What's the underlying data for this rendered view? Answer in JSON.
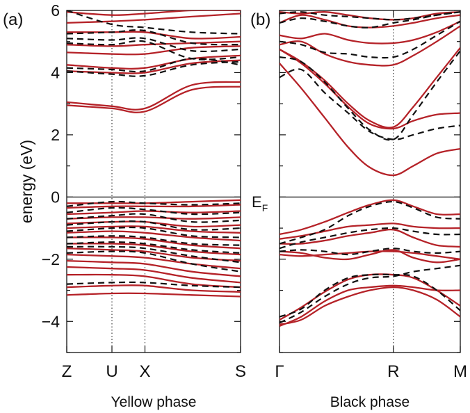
{
  "colors": {
    "solid": "#b52228",
    "dashed": "#111111",
    "axis": "#111111"
  },
  "ylabel": "energy (eV)",
  "ef_label": "E",
  "ef_sub": "F",
  "chart_data": [
    {
      "type": "line",
      "panel_label": "(a)",
      "caption": "Yellow phase",
      "ylim": [
        -5,
        6
      ],
      "y_ticks": [
        -4,
        -2,
        0,
        2,
        4,
        6
      ],
      "kpoints": [
        {
          "label": "Z",
          "x": 0
        },
        {
          "label": "U",
          "x": 0.26
        },
        {
          "label": "X",
          "x": 0.45
        },
        {
          "label": "S",
          "x": 1
        }
      ],
      "x": [
        0,
        0.26,
        0.45,
        0.72,
        1
      ],
      "series": [
        {
          "style": "solid",
          "values": [
            2.95,
            2.85,
            2.75,
            3.45,
            3.55
          ]
        },
        {
          "style": "solid",
          "values": [
            3.05,
            2.92,
            2.85,
            3.6,
            3.7
          ]
        },
        {
          "style": "solid",
          "values": [
            4.05,
            4.0,
            4.0,
            4.3,
            4.4
          ]
        },
        {
          "style": "solid",
          "values": [
            4.25,
            4.15,
            4.15,
            4.45,
            4.55
          ]
        },
        {
          "style": "solid",
          "values": [
            4.65,
            4.6,
            4.6,
            4.8,
            4.85
          ]
        },
        {
          "style": "solid",
          "values": [
            4.9,
            4.85,
            4.9,
            4.95,
            5.0
          ]
        },
        {
          "style": "solid",
          "values": [
            5.3,
            5.3,
            5.3,
            5.1,
            5.15
          ]
        },
        {
          "style": "solid",
          "values": [
            5.6,
            5.65,
            5.7,
            5.8,
            5.9
          ]
        },
        {
          "style": "solid",
          "values": [
            5.95,
            5.85,
            5.9,
            6.0,
            6.0
          ]
        },
        {
          "style": "dashed",
          "values": [
            4.05,
            3.95,
            3.9,
            4.25,
            4.35
          ]
        },
        {
          "style": "dashed",
          "values": [
            4.15,
            4.1,
            4.05,
            4.45,
            4.25
          ]
        },
        {
          "style": "dashed",
          "values": [
            4.95,
            4.9,
            5.0,
            4.45,
            4.5
          ]
        },
        {
          "style": "dashed",
          "values": [
            5.1,
            5.05,
            5.1,
            4.7,
            4.75
          ]
        },
        {
          "style": "dashed",
          "values": [
            5.25,
            5.3,
            5.35,
            4.95,
            4.9
          ]
        },
        {
          "style": "dashed",
          "values": [
            6.0,
            5.55,
            5.45,
            5.3,
            5.25
          ]
        },
        {
          "style": "solid",
          "values": [
            -0.2,
            -0.2,
            -0.2,
            -0.15,
            -0.1
          ]
        },
        {
          "style": "solid",
          "values": [
            -0.35,
            -0.3,
            -0.3,
            -0.3,
            -0.25
          ]
        },
        {
          "style": "solid",
          "values": [
            -0.55,
            -0.5,
            -0.45,
            -0.5,
            -0.45
          ]
        },
        {
          "style": "solid",
          "values": [
            -0.7,
            -0.65,
            -0.65,
            -0.7,
            -0.65
          ]
        },
        {
          "style": "solid",
          "values": [
            -0.85,
            -0.8,
            -0.8,
            -0.95,
            -0.9
          ]
        },
        {
          "style": "solid",
          "values": [
            -1.0,
            -0.95,
            -0.95,
            -1.1,
            -1.15
          ]
        },
        {
          "style": "solid",
          "values": [
            -1.15,
            -1.1,
            -1.15,
            -1.3,
            -1.4
          ]
        },
        {
          "style": "solid",
          "values": [
            -1.3,
            -1.3,
            -1.35,
            -1.55,
            -1.65
          ]
        },
        {
          "style": "solid",
          "values": [
            -1.5,
            -1.5,
            -1.55,
            -1.75,
            -1.85
          ]
        },
        {
          "style": "solid",
          "values": [
            -1.65,
            -1.7,
            -1.75,
            -1.95,
            -2.05
          ]
        },
        {
          "style": "solid",
          "values": [
            -1.85,
            -1.9,
            -1.95,
            -2.15,
            -2.3
          ]
        },
        {
          "style": "solid",
          "values": [
            -2.05,
            -2.1,
            -2.15,
            -2.4,
            -2.55
          ]
        },
        {
          "style": "solid",
          "values": [
            -2.25,
            -2.3,
            -2.35,
            -2.6,
            -2.75
          ]
        },
        {
          "style": "solid",
          "values": [
            -2.5,
            -2.5,
            -2.55,
            -2.8,
            -2.9
          ]
        },
        {
          "style": "solid",
          "values": [
            -2.9,
            -2.85,
            -2.85,
            -3.0,
            -3.05
          ]
        },
        {
          "style": "solid",
          "values": [
            -3.15,
            -3.1,
            -3.1,
            -3.15,
            -3.2
          ]
        },
        {
          "style": "dashed",
          "values": [
            -0.3,
            -0.15,
            -0.2,
            -0.25,
            -0.2
          ]
        },
        {
          "style": "dashed",
          "values": [
            -0.5,
            -0.35,
            -0.4,
            -0.55,
            -0.5
          ]
        },
        {
          "style": "dashed",
          "values": [
            -0.7,
            -0.6,
            -0.55,
            -0.8,
            -0.75
          ]
        },
        {
          "style": "dashed",
          "values": [
            -0.9,
            -0.8,
            -0.8,
            -1.05,
            -1.0
          ]
        },
        {
          "style": "dashed",
          "values": [
            -1.1,
            -1.0,
            -1.0,
            -1.25,
            -1.3
          ]
        },
        {
          "style": "dashed",
          "values": [
            -1.3,
            -1.25,
            -1.3,
            -1.5,
            -1.55
          ]
        },
        {
          "style": "dashed",
          "values": [
            -1.5,
            -1.45,
            -1.5,
            -1.7,
            -1.8
          ]
        },
        {
          "style": "dashed",
          "values": [
            -1.6,
            -1.6,
            -1.65,
            -1.9,
            -2.1
          ]
        },
        {
          "style": "dashed",
          "values": [
            -1.8,
            -1.75,
            -1.8,
            -2.15,
            -2.4
          ]
        },
        {
          "style": "dashed",
          "values": [
            -2.8,
            -2.75,
            -2.75,
            -2.85,
            -2.9
          ]
        }
      ]
    },
    {
      "type": "line",
      "panel_label": "(b)",
      "caption": "Black phase",
      "ylim": [
        -5,
        6
      ],
      "y_ticks": [
        -4,
        -2,
        0,
        2,
        4,
        6
      ],
      "kpoints": [
        {
          "label": "Γ",
          "x": 0
        },
        {
          "label": "R",
          "x": 0.63
        },
        {
          "label": "M",
          "x": 1
        }
      ],
      "x": [
        0,
        0.12,
        0.25,
        0.38,
        0.5,
        0.63,
        0.74,
        0.87,
        1
      ],
      "series": [
        {
          "style": "solid",
          "values": [
            4.3,
            3.5,
            2.55,
            1.6,
            0.95,
            0.7,
            1.0,
            1.4,
            1.55
          ]
        },
        {
          "style": "solid",
          "values": [
            4.75,
            4.3,
            3.65,
            2.9,
            2.35,
            2.2,
            2.45,
            2.65,
            2.7
          ]
        },
        {
          "style": "solid",
          "values": [
            4.75,
            4.35,
            3.75,
            3.0,
            2.45,
            2.25,
            2.9,
            3.85,
            4.8
          ]
        },
        {
          "style": "solid",
          "values": [
            4.9,
            5.0,
            4.6,
            4.35,
            4.25,
            4.25,
            4.55,
            5.0,
            5.5
          ]
        },
        {
          "style": "solid",
          "values": [
            5.2,
            5.1,
            5.25,
            5.05,
            4.95,
            4.95,
            5.05,
            5.3,
            5.65
          ]
        },
        {
          "style": "solid",
          "values": [
            5.6,
            5.85,
            5.7,
            5.5,
            5.45,
            5.5,
            5.6,
            5.75,
            5.85
          ]
        },
        {
          "style": "solid",
          "values": [
            5.95,
            5.9,
            5.95,
            5.85,
            5.75,
            5.7,
            5.75,
            5.9,
            5.95
          ]
        },
        {
          "style": "dashed",
          "values": [
            3.85,
            4.1,
            3.35,
            2.7,
            2.1,
            1.85,
            2.0,
            2.2,
            2.3
          ]
        },
        {
          "style": "dashed",
          "values": [
            4.5,
            4.35,
            3.7,
            2.85,
            2.15,
            1.85,
            2.65,
            3.7,
            4.7
          ]
        },
        {
          "style": "dashed",
          "values": [
            5.0,
            4.9,
            4.65,
            4.6,
            4.5,
            4.5,
            4.75,
            5.2,
            5.65
          ]
        },
        {
          "style": "dashed",
          "values": [
            5.6,
            5.75,
            5.65,
            5.5,
            5.45,
            5.6,
            5.7,
            5.85,
            5.95
          ]
        },
        {
          "style": "dashed",
          "values": [
            5.9,
            5.95,
            5.85,
            5.8,
            5.75,
            5.7,
            5.75,
            5.85,
            5.95
          ]
        },
        {
          "style": "solid",
          "values": [
            -1.2,
            -1.05,
            -0.8,
            -0.5,
            -0.25,
            -0.1,
            -0.3,
            -0.55,
            -0.55
          ]
        },
        {
          "style": "solid",
          "values": [
            -1.35,
            -1.25,
            -1.1,
            -0.95,
            -0.9,
            -0.85,
            -0.95,
            -1.0,
            -1.0
          ]
        },
        {
          "style": "solid",
          "values": [
            -1.5,
            -1.5,
            -1.4,
            -1.25,
            -1.15,
            -1.05,
            -1.3,
            -1.55,
            -1.6
          ]
        },
        {
          "style": "solid",
          "values": [
            -1.75,
            -1.8,
            -1.95,
            -2.0,
            -1.85,
            -1.7,
            -1.95,
            -2.1,
            -2.0
          ]
        },
        {
          "style": "solid",
          "values": [
            -1.85,
            -1.9,
            -1.85,
            -1.8,
            -1.75,
            -1.75,
            -1.8,
            -1.9,
            -2.0
          ]
        },
        {
          "style": "solid",
          "values": [
            -4.1,
            -3.95,
            -3.5,
            -3.2,
            -3.0,
            -2.9,
            -3.0,
            -3.3,
            -3.85
          ]
        },
        {
          "style": "solid",
          "values": [
            -4.15,
            -3.85,
            -3.35,
            -3.0,
            -2.9,
            -2.85,
            -2.9,
            -3.0,
            -3.0
          ]
        },
        {
          "style": "solid",
          "values": [
            -3.95,
            -3.55,
            -3.05,
            -2.65,
            -2.5,
            -2.5,
            -2.6,
            -3.0,
            -3.5
          ]
        },
        {
          "style": "dashed",
          "values": [
            -1.5,
            -1.3,
            -1.05,
            -0.6,
            -0.3,
            -0.15,
            -0.35,
            -0.65,
            -0.7
          ]
        },
        {
          "style": "dashed",
          "values": [
            -1.65,
            -1.45,
            -1.3,
            -1.15,
            -1.05,
            -1.0,
            -1.1,
            -1.2,
            -1.2
          ]
        },
        {
          "style": "dashed",
          "values": [
            -1.75,
            -1.7,
            -1.75,
            -1.85,
            -1.75,
            -1.65,
            -1.75,
            -1.8,
            -1.75
          ]
        },
        {
          "style": "dashed",
          "values": [
            -3.85,
            -3.6,
            -3.0,
            -2.6,
            -2.5,
            -2.5,
            -2.55,
            -3.0,
            -3.65
          ]
        },
        {
          "style": "dashed",
          "values": [
            -4.05,
            -3.7,
            -3.2,
            -2.8,
            -2.6,
            -2.55,
            -2.4,
            -2.3,
            -2.2
          ]
        }
      ]
    }
  ]
}
